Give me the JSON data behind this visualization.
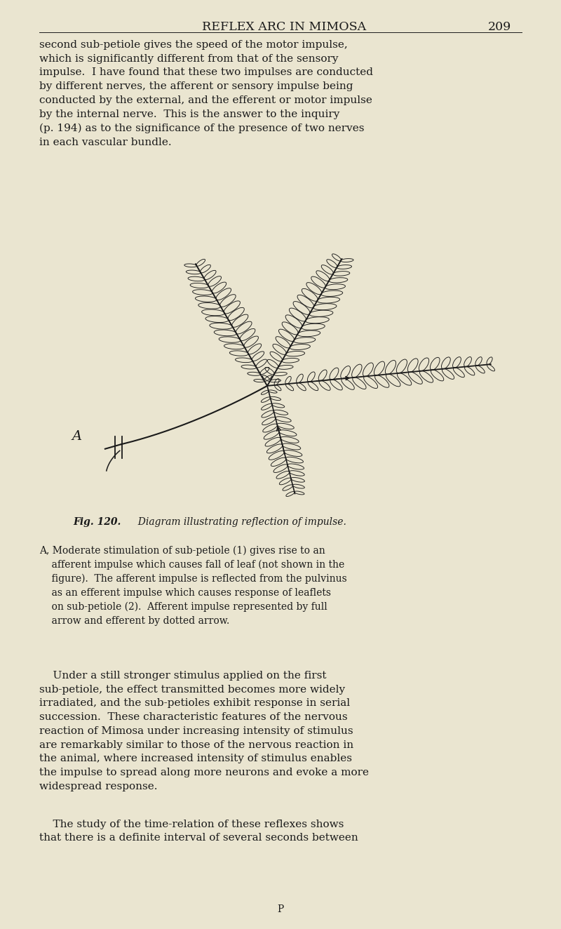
{
  "background_color": "#EAE5D0",
  "text_color": "#1a1a1a",
  "page_width": 8.0,
  "page_height": 13.24,
  "title": "REFLEX ARC IN MIMOSA",
  "page_number": "209",
  "title_fontsize": 12.5,
  "body_fontsize": 11.0,
  "fig_caption_bold": "Fig. 120.",
  "fig_caption_text": "  Diagram illustrating reflection of impulse.",
  "fig_caption_fontsize": 10.0,
  "legend_text_a": "A, Moderate stimulation of sub-petiole (1) gives rise to an\n    afferent impulse which causes fall of leaf (not shown in the\n    figure).  The afferent impulse is reflected from the pulvinus\n    as an efferent impulse which causes response of leaflets\n    on sub-petiole (2).  Afferent impulse represented by full\n    arrow and efferent by dotted arrow.",
  "legend_fontsize": 10.0,
  "para1": "second sub-petiole gives the speed of the motor impulse,\nwhich is significantly different from that of the sensory\nimpulse.  I have found that these two impulses are conducted\nby different nerves, the afferent or sensory impulse being\nconducted by the external, and the efferent or motor impulse\nby the internal nerve.  This is the answer to the inquiry\n(p. 194) as to the significance of the presence of two nerves\nin each vascular bundle.",
  "para2": "    Under a still stronger stimulus applied on the first\nsub-petiole, the effect transmitted becomes more widely\nirradiated, and the sub-petioles exhibit response in serial\nsuccession.  These characteristic features of the nervous\nreaction of Mimosa under increasing intensity of stimulus\nare remarkably similar to those of the nervous reaction in\nthe animal, where increased intensity of stimulus enables\nthe impulse to spread along more neurons and evoke a more\nwidespread response.",
  "para3": "    The study of the time-relation of these reflexes shows\nthat there is a definite interval of several seconds between",
  "footer": "P"
}
